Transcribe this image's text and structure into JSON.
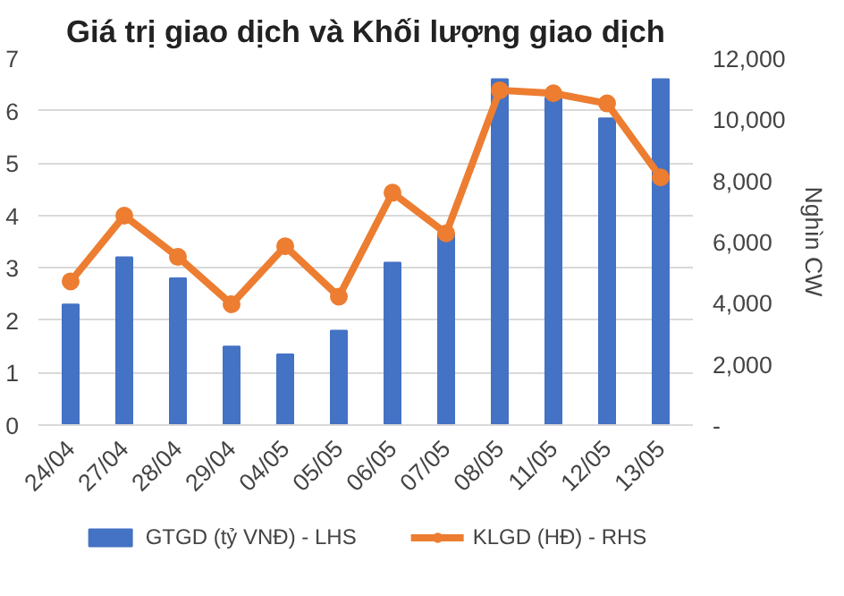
{
  "chart_data": {
    "type": "bar",
    "title": "Giá trị giao dịch và Khối lượng giao dịch",
    "y2label": "Nghìn CW",
    "categories": [
      "24/04",
      "27/04",
      "28/04",
      "29/04",
      "04/05",
      "05/05",
      "06/05",
      "07/05",
      "08/05",
      "11/05",
      "12/05",
      "13/05"
    ],
    "series": [
      {
        "name": "GTGD (tỷ VNĐ) - LHS",
        "color": "#4472c4",
        "values": [
          2.3,
          3.2,
          2.8,
          1.5,
          1.35,
          1.8,
          3.1,
          3.65,
          6.6,
          6.25,
          5.85,
          6.6
        ]
      },
      {
        "name": "KLGD (HĐ) - RHS",
        "color": "#ed7d31",
        "type": "line",
        "axis": "y2",
        "marker": "circle",
        "values": [
          4700,
          6850,
          5500,
          3950,
          5850,
          4200,
          7600,
          6270,
          10950,
          10850,
          10520,
          8100
        ]
      }
    ],
    "ylim": [
      0,
      7
    ],
    "yticks": [
      0,
      1,
      2,
      3,
      4,
      5,
      6,
      7
    ],
    "y2lim": [
      0,
      12000
    ],
    "y2ticks": [
      {
        "value": 0,
        "label": "-"
      },
      {
        "value": 2000,
        "label": "2,000"
      },
      {
        "value": 4000,
        "label": "4,000"
      },
      {
        "value": 6000,
        "label": "6,000"
      },
      {
        "value": 8000,
        "label": "8,000"
      },
      {
        "value": 10000,
        "label": "10,000"
      },
      {
        "value": 12000,
        "label": "12,000"
      }
    ],
    "grid": "y",
    "legend": "bottom"
  }
}
